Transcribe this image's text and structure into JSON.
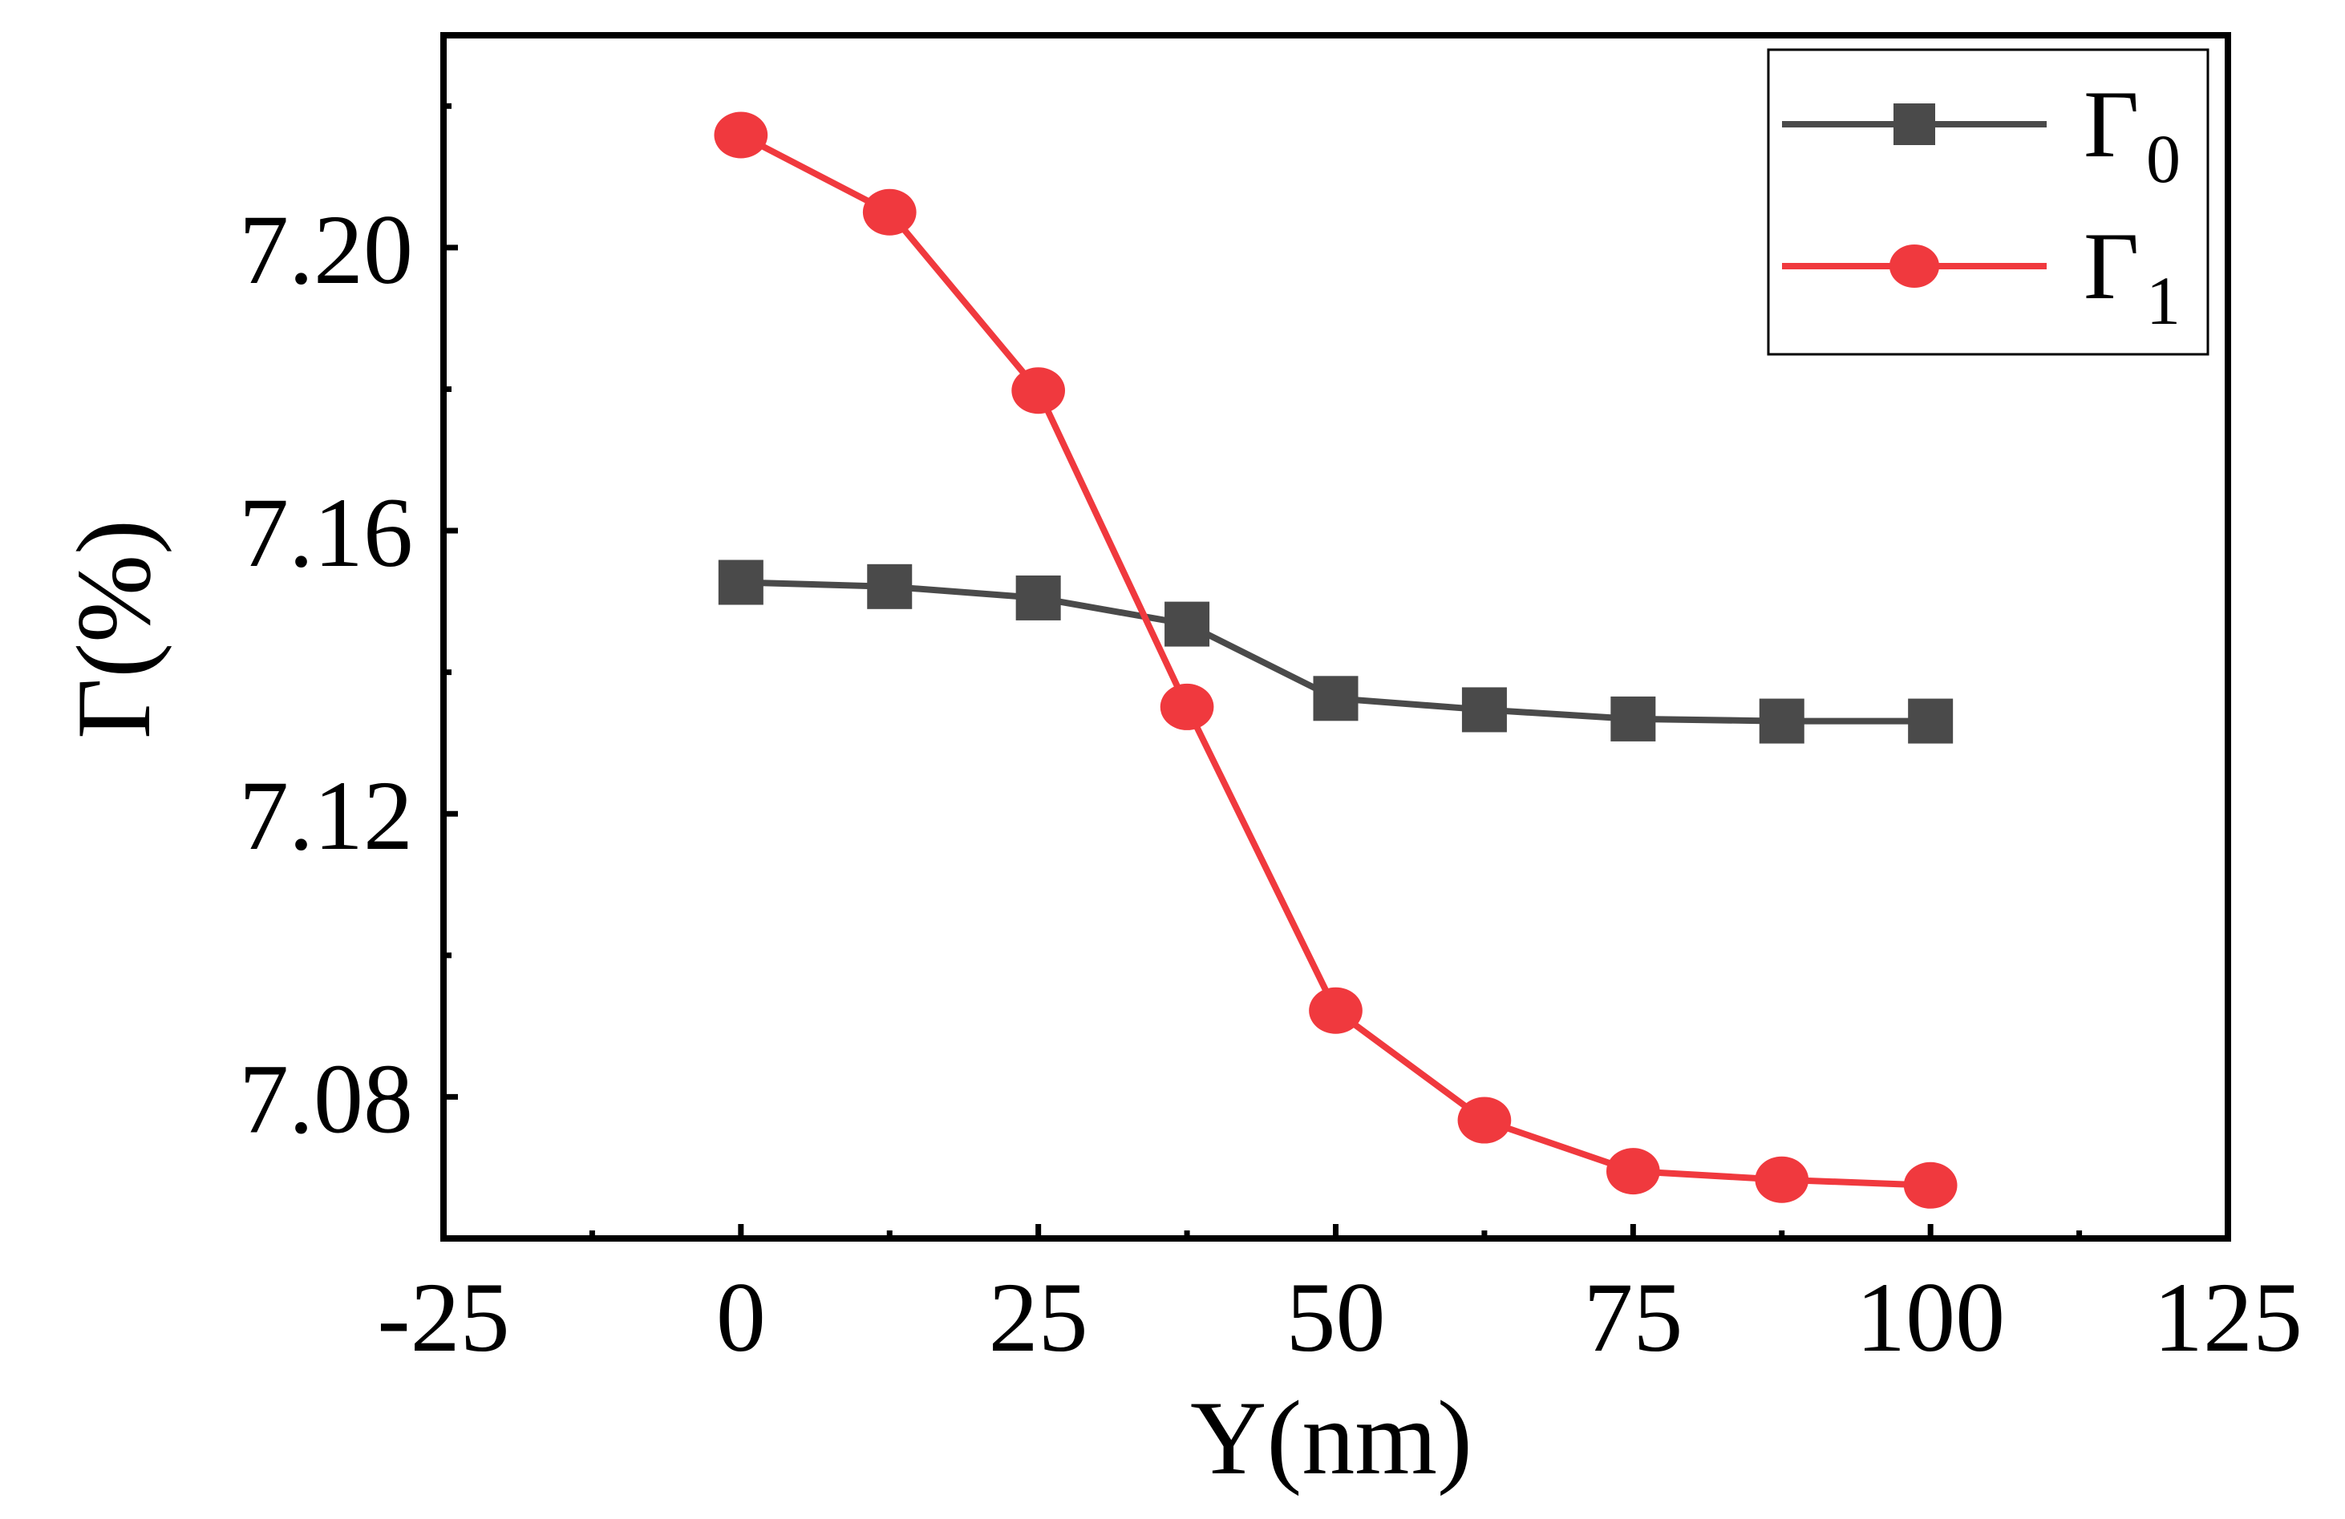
{
  "chart_data": {
    "type": "line",
    "title": "",
    "xlabel": "Y(nm)",
    "ylabel": "Γ(%)",
    "xlim": [
      -25,
      125
    ],
    "ylim": [
      7.06,
      7.23
    ],
    "xticks": [
      -25,
      0,
      25,
      50,
      75,
      100,
      125
    ],
    "xtick_labels": [
      "-25",
      "0",
      "25",
      "50",
      "75",
      "100",
      "125"
    ],
    "yticks": [
      7.08,
      7.12,
      7.16,
      7.2
    ],
    "ytick_labels": [
      "7.08",
      "7.12",
      "7.16",
      "7.20"
    ],
    "x": [
      0,
      12.5,
      25,
      37.5,
      50,
      62.5,
      75,
      87.5,
      100
    ],
    "series": [
      {
        "name": "Γ0",
        "symbol": "Γ",
        "subscript": "0",
        "marker": "square",
        "color": "#4a4a4a",
        "values": [
          7.1527,
          7.1521,
          7.1505,
          7.1468,
          7.1363,
          7.1347,
          7.1334,
          7.1331,
          7.1331
        ]
      },
      {
        "name": "Γ1",
        "symbol": "Γ",
        "subscript": "1",
        "marker": "circle",
        "color": "#f0393e",
        "values": [
          7.2159,
          7.205,
          7.1798,
          7.1351,
          7.0922,
          7.0767,
          7.0695,
          7.0683,
          7.0675
        ]
      }
    ],
    "legend_position": "top-right",
    "grid": false
  }
}
